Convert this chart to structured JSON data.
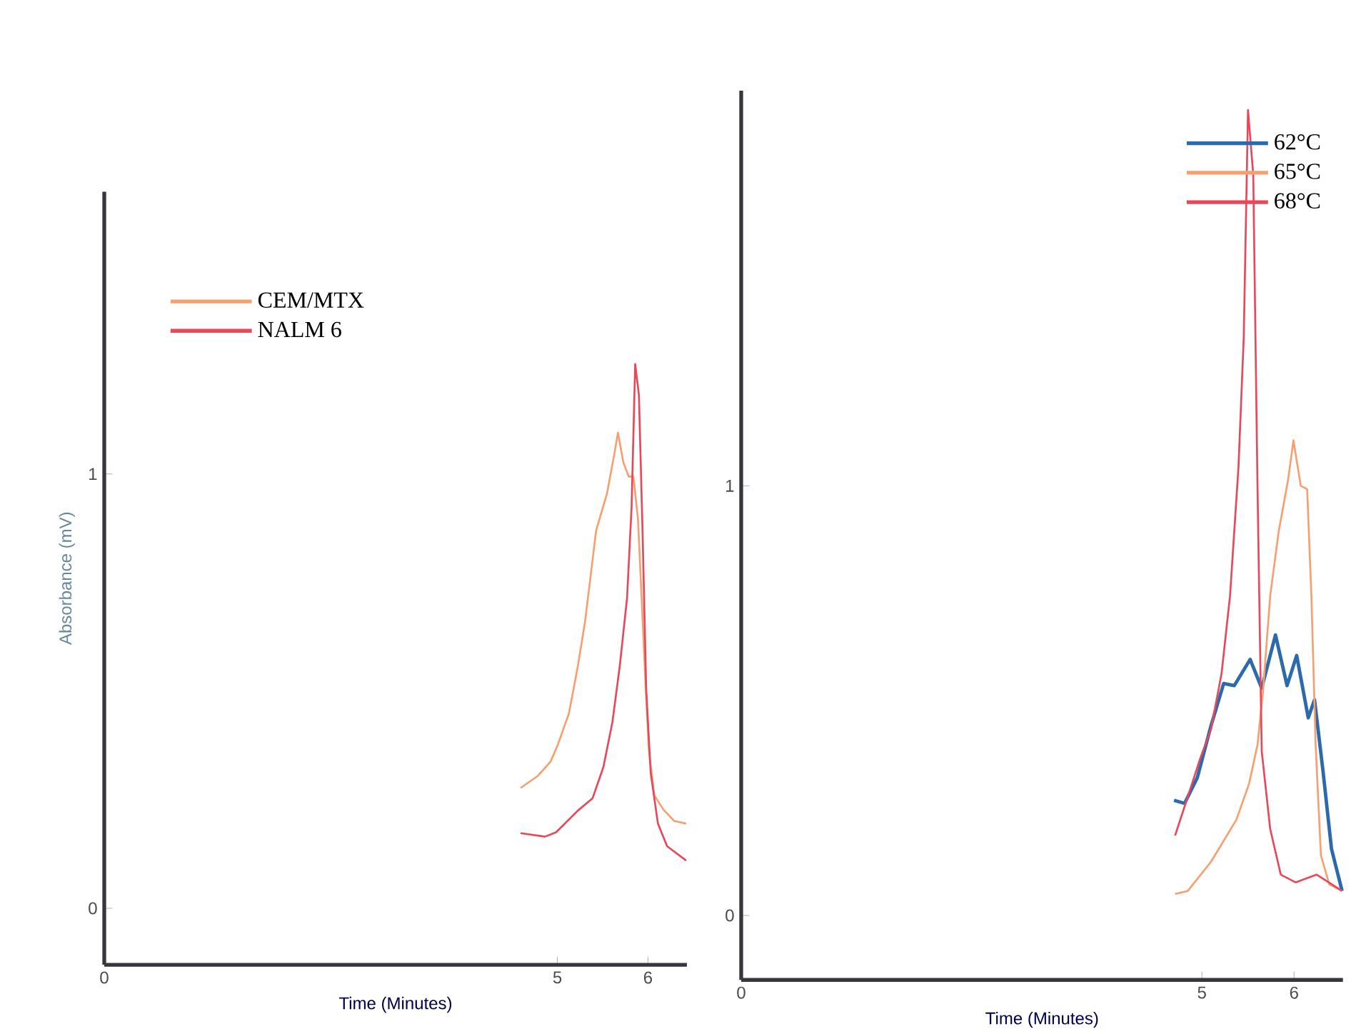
{
  "chart_data": [
    {
      "type": "line",
      "xlabel": "Time (Minutes)",
      "ylabel": "Absorbance (mV)",
      "xlim": [
        0,
        6.43
      ],
      "ylim": [
        -0.13,
        1.65
      ],
      "xticks": [
        0,
        5,
        6
      ],
      "yticks": [
        0,
        1
      ],
      "legend": "top left",
      "series": [
        {
          "name": "CEM/MTX",
          "color": "#f5a070",
          "x": [
            4.594,
            4.785,
            4.926,
            5.006,
            5.127,
            5.227,
            5.307,
            5.428,
            5.548,
            5.628,
            5.669,
            5.729,
            5.789,
            5.839,
            5.89,
            5.93,
            5.97,
            6.01,
            6.07,
            6.171,
            6.291,
            6.422
          ],
          "values": [
            0.277,
            0.305,
            0.338,
            0.377,
            0.448,
            0.558,
            0.662,
            0.87,
            0.955,
            1.045,
            1.095,
            1.026,
            0.994,
            0.994,
            0.896,
            0.714,
            0.532,
            0.364,
            0.26,
            0.227,
            0.201,
            0.195
          ]
        },
        {
          "name": "NALM 6",
          "color": "#e8485a",
          "x": [
            4.594,
            4.865,
            4.986,
            5.227,
            5.388,
            5.508,
            5.608,
            5.689,
            5.769,
            5.819,
            5.859,
            5.9,
            5.94,
            5.98,
            6.03,
            6.11,
            6.211,
            6.422
          ],
          "values": [
            0.173,
            0.165,
            0.175,
            0.225,
            0.253,
            0.325,
            0.429,
            0.558,
            0.714,
            0.922,
            1.253,
            1.182,
            0.87,
            0.506,
            0.312,
            0.195,
            0.143,
            0.11
          ]
        }
      ]
    },
    {
      "type": "line",
      "xlabel": "Time (Minutes)",
      "xlim": [
        0,
        6.53
      ],
      "ylim": [
        -0.15,
        1.92
      ],
      "xticks": [
        0,
        5,
        6
      ],
      "yticks": [
        0,
        1
      ],
      "legend": "top right",
      "series": [
        {
          "name": "62°C",
          "color": "#2a6aad",
          "x": [
            4.697,
            4.812,
            4.95,
            5.099,
            5.236,
            5.351,
            5.523,
            5.649,
            5.798,
            5.924,
            6.028,
            6.154,
            6.222,
            6.314,
            6.406,
            6.521
          ],
          "values": [
            0.268,
            0.261,
            0.321,
            0.442,
            0.54,
            0.535,
            0.596,
            0.529,
            0.653,
            0.535,
            0.605,
            0.46,
            0.502,
            0.336,
            0.155,
            0.057
          ]
        },
        {
          "name": "65°C",
          "color": "#f5a070",
          "x": [
            4.709,
            4.846,
            5.099,
            5.374,
            5.511,
            5.603,
            5.661,
            5.741,
            5.833,
            5.936,
            5.993,
            6.073,
            6.142,
            6.188,
            6.234,
            6.291,
            6.383,
            6.521
          ],
          "values": [
            0.05,
            0.057,
            0.125,
            0.223,
            0.306,
            0.397,
            0.517,
            0.744,
            0.894,
            1.015,
            1.106,
            1.0,
            0.992,
            0.744,
            0.397,
            0.14,
            0.072,
            0.057
          ]
        },
        {
          "name": "68°C",
          "color": "#e8485a",
          "x": [
            4.709,
            4.846,
            4.984,
            5.099,
            5.213,
            5.305,
            5.397,
            5.454,
            5.5,
            5.557,
            5.603,
            5.649,
            5.741,
            5.856,
            6.016,
            6.245,
            6.521
          ],
          "values": [
            0.186,
            0.276,
            0.367,
            0.434,
            0.563,
            0.744,
            1.045,
            1.347,
            1.875,
            1.724,
            1.0,
            0.382,
            0.201,
            0.095,
            0.077,
            0.095,
            0.057
          ]
        }
      ]
    }
  ]
}
